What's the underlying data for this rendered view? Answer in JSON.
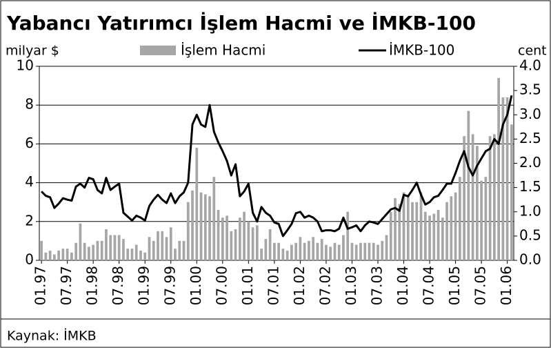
{
  "chart_data": {
    "type": "bar_line",
    "title": "Yabancı Yatırımcı İşlem Hacmi ve İMKB-100",
    "y_label": "milyar $",
    "y2_label": "cent",
    "source": "Kaynak: İMKB",
    "categories": [
      "01.97",
      null,
      null,
      null,
      null,
      null,
      "07.97",
      null,
      null,
      null,
      null,
      null,
      "01.98",
      null,
      null,
      null,
      null,
      null,
      "07.98",
      null,
      null,
      null,
      null,
      null,
      "01.99",
      null,
      null,
      null,
      null,
      null,
      "07.99",
      null,
      null,
      null,
      null,
      null,
      "01.00",
      null,
      null,
      null,
      null,
      null,
      "07.00",
      null,
      null,
      null,
      null,
      null,
      "01.01",
      null,
      null,
      null,
      null,
      null,
      "07.01",
      null,
      null,
      null,
      null,
      null,
      "01.02",
      null,
      null,
      null,
      null,
      null,
      "07.02",
      null,
      null,
      null,
      null,
      null,
      "01.03",
      null,
      null,
      null,
      null,
      null,
      "07.03",
      null,
      null,
      null,
      null,
      null,
      "01.04",
      null,
      null,
      null,
      null,
      null,
      "07.04",
      null,
      null,
      null,
      null,
      null,
      "01.05",
      null,
      null,
      null,
      null,
      null,
      "07.05",
      null,
      null,
      null,
      null,
      null,
      "01.06",
      null
    ],
    "series": [
      {
        "name": "İşlem Hacmi",
        "color": "#a6a6a6",
        "values": [
          1.0,
          0.4,
          0.5,
          0.3,
          0.5,
          0.6,
          0.6,
          0.4,
          0.9,
          1.9,
          0.9,
          0.7,
          0.8,
          1.0,
          1.0,
          1.6,
          1.3,
          1.3,
          1.3,
          1.1,
          0.6,
          0.6,
          0.8,
          0.5,
          0.4,
          1.2,
          1.0,
          1.5,
          1.5,
          1.2,
          1.7,
          0.6,
          1.0,
          1.0,
          3.0,
          3.6,
          5.8,
          3.5,
          3.4,
          3.3,
          4.3,
          2.6,
          2.2,
          2.3,
          1.5,
          1.6,
          2.2,
          2.5,
          2.0,
          1.7,
          1.8,
          0.6,
          1.1,
          1.6,
          0.9,
          0.9,
          0.6,
          0.5,
          0.8,
          0.9,
          1.2,
          0.9,
          1.0,
          1.2,
          0.9,
          1.1,
          0.8,
          0.7,
          0.9,
          0.8,
          1.3,
          2.5,
          0.9,
          0.8,
          0.9,
          0.9,
          0.9,
          0.9,
          0.8,
          1.0,
          1.3,
          2.5,
          3.2,
          2.9,
          3.5,
          3.3,
          3.0,
          3.0,
          3.5,
          2.5,
          2.3,
          2.4,
          2.6,
          2.2,
          3.0,
          3.3,
          3.5,
          4.3,
          6.4,
          7.7,
          6.5,
          5.9,
          4.1,
          4.3,
          6.4,
          6.5,
          9.4,
          8.4,
          8.4,
          7.0
        ]
      },
      {
        "name": "İMKB-100",
        "color": "#000000",
        "axis": "y2",
        "values": [
          1.42,
          1.33,
          1.3,
          1.08,
          1.17,
          1.28,
          1.25,
          1.23,
          1.52,
          1.58,
          1.5,
          1.7,
          1.67,
          1.45,
          1.38,
          1.7,
          1.45,
          1.52,
          1.58,
          0.98,
          0.9,
          0.82,
          0.92,
          0.88,
          0.82,
          1.12,
          1.25,
          1.35,
          1.25,
          1.18,
          1.38,
          1.18,
          1.32,
          1.4,
          1.6,
          2.8,
          3.0,
          2.8,
          2.75,
          3.2,
          2.65,
          2.43,
          2.25,
          2.05,
          1.75,
          1.98,
          1.32,
          1.42,
          1.58,
          0.98,
          0.8,
          1.1,
          0.98,
          0.92,
          0.78,
          0.75,
          0.5,
          0.62,
          0.75,
          0.97,
          1.0,
          0.88,
          0.92,
          0.88,
          0.8,
          0.6,
          0.62,
          0.62,
          0.6,
          0.65,
          0.88,
          0.65,
          0.68,
          0.72,
          0.6,
          0.72,
          0.8,
          0.78,
          0.75,
          0.85,
          0.95,
          1.05,
          1.08,
          1.02,
          1.35,
          1.32,
          1.45,
          1.6,
          1.35,
          1.15,
          1.2,
          1.3,
          1.33,
          1.45,
          1.58,
          1.58,
          1.8,
          2.05,
          2.25,
          1.92,
          1.75,
          1.95,
          2.1,
          2.25,
          2.3,
          2.5,
          2.4,
          2.8,
          3.0,
          3.4
        ]
      }
    ],
    "ylim": [
      0,
      10
    ],
    "yticks": [
      0,
      2,
      4,
      6,
      8,
      10
    ],
    "y2lim": [
      0,
      4
    ],
    "y2ticks": [
      {
        "value": 0,
        "label": "0.0"
      },
      {
        "value": 0.5,
        "label": "0.5"
      },
      {
        "value": 1,
        "label": "1.0"
      },
      {
        "value": 1.5,
        "label": "1.5"
      },
      {
        "value": 2,
        "label": "2.0"
      },
      {
        "value": 2.5,
        "label": "2.5"
      },
      {
        "value": 3,
        "label": "3.0"
      },
      {
        "value": 3.5,
        "label": "3.5"
      },
      {
        "value": 4,
        "label": "4.0"
      }
    ],
    "grid": true,
    "legend": "top"
  }
}
